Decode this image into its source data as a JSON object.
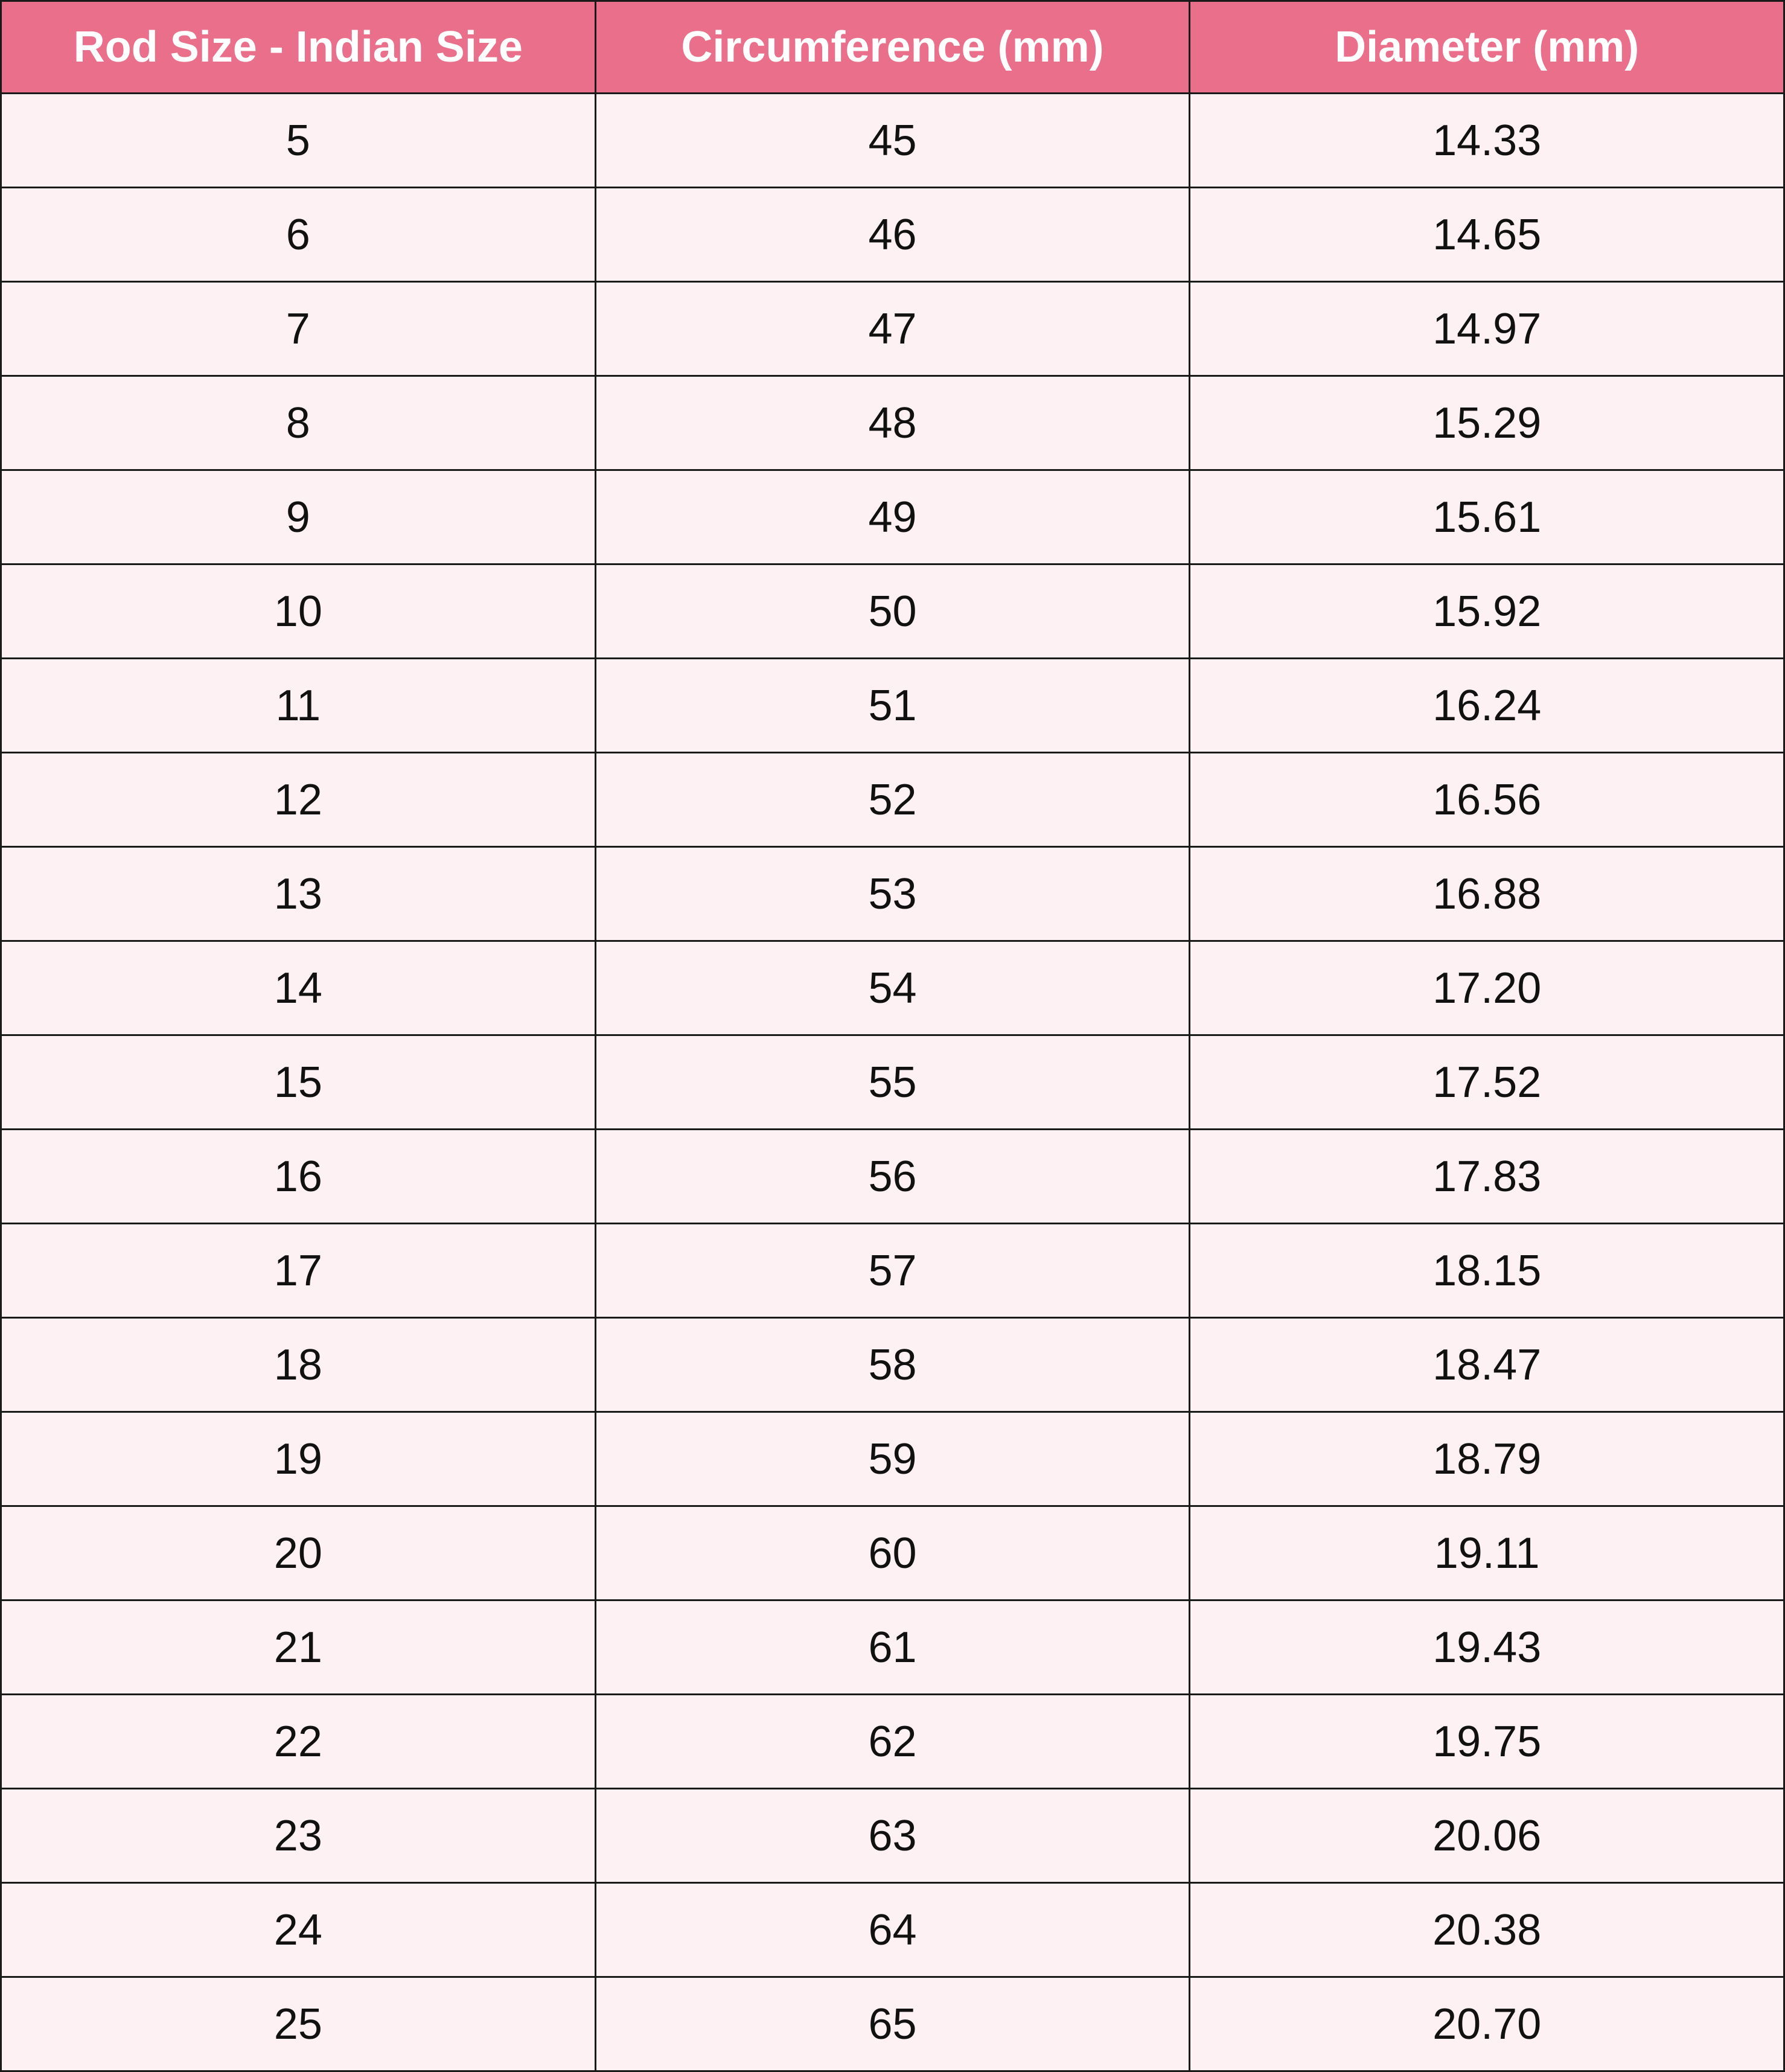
{
  "colors": {
    "header_bg": "#e96f8a",
    "header_text": "#ffffff",
    "row_bg": "#fdf1f3",
    "border": "#1a1a1a"
  },
  "table": {
    "headers": [
      "Rod Size  - Indian Size",
      "Circumference (mm)",
      "Diameter (mm)"
    ],
    "rows": [
      [
        "5",
        "45",
        "14.33"
      ],
      [
        "6",
        "46",
        "14.65"
      ],
      [
        "7",
        "47",
        "14.97"
      ],
      [
        "8",
        "48",
        "15.29"
      ],
      [
        "9",
        "49",
        "15.61"
      ],
      [
        "10",
        "50",
        "15.92"
      ],
      [
        "11",
        "51",
        "16.24"
      ],
      [
        "12",
        "52",
        "16.56"
      ],
      [
        "13",
        "53",
        "16.88"
      ],
      [
        "14",
        "54",
        "17.20"
      ],
      [
        "15",
        "55",
        "17.52"
      ],
      [
        "16",
        "56",
        "17.83"
      ],
      [
        "17",
        "57",
        "18.15"
      ],
      [
        "18",
        "58",
        "18.47"
      ],
      [
        "19",
        "59",
        "18.79"
      ],
      [
        "20",
        "60",
        "19.11"
      ],
      [
        "21",
        "61",
        "19.43"
      ],
      [
        "22",
        "62",
        "19.75"
      ],
      [
        "23",
        "63",
        "20.06"
      ],
      [
        "24",
        "64",
        "20.38"
      ],
      [
        "25",
        "65",
        "20.70"
      ]
    ]
  }
}
